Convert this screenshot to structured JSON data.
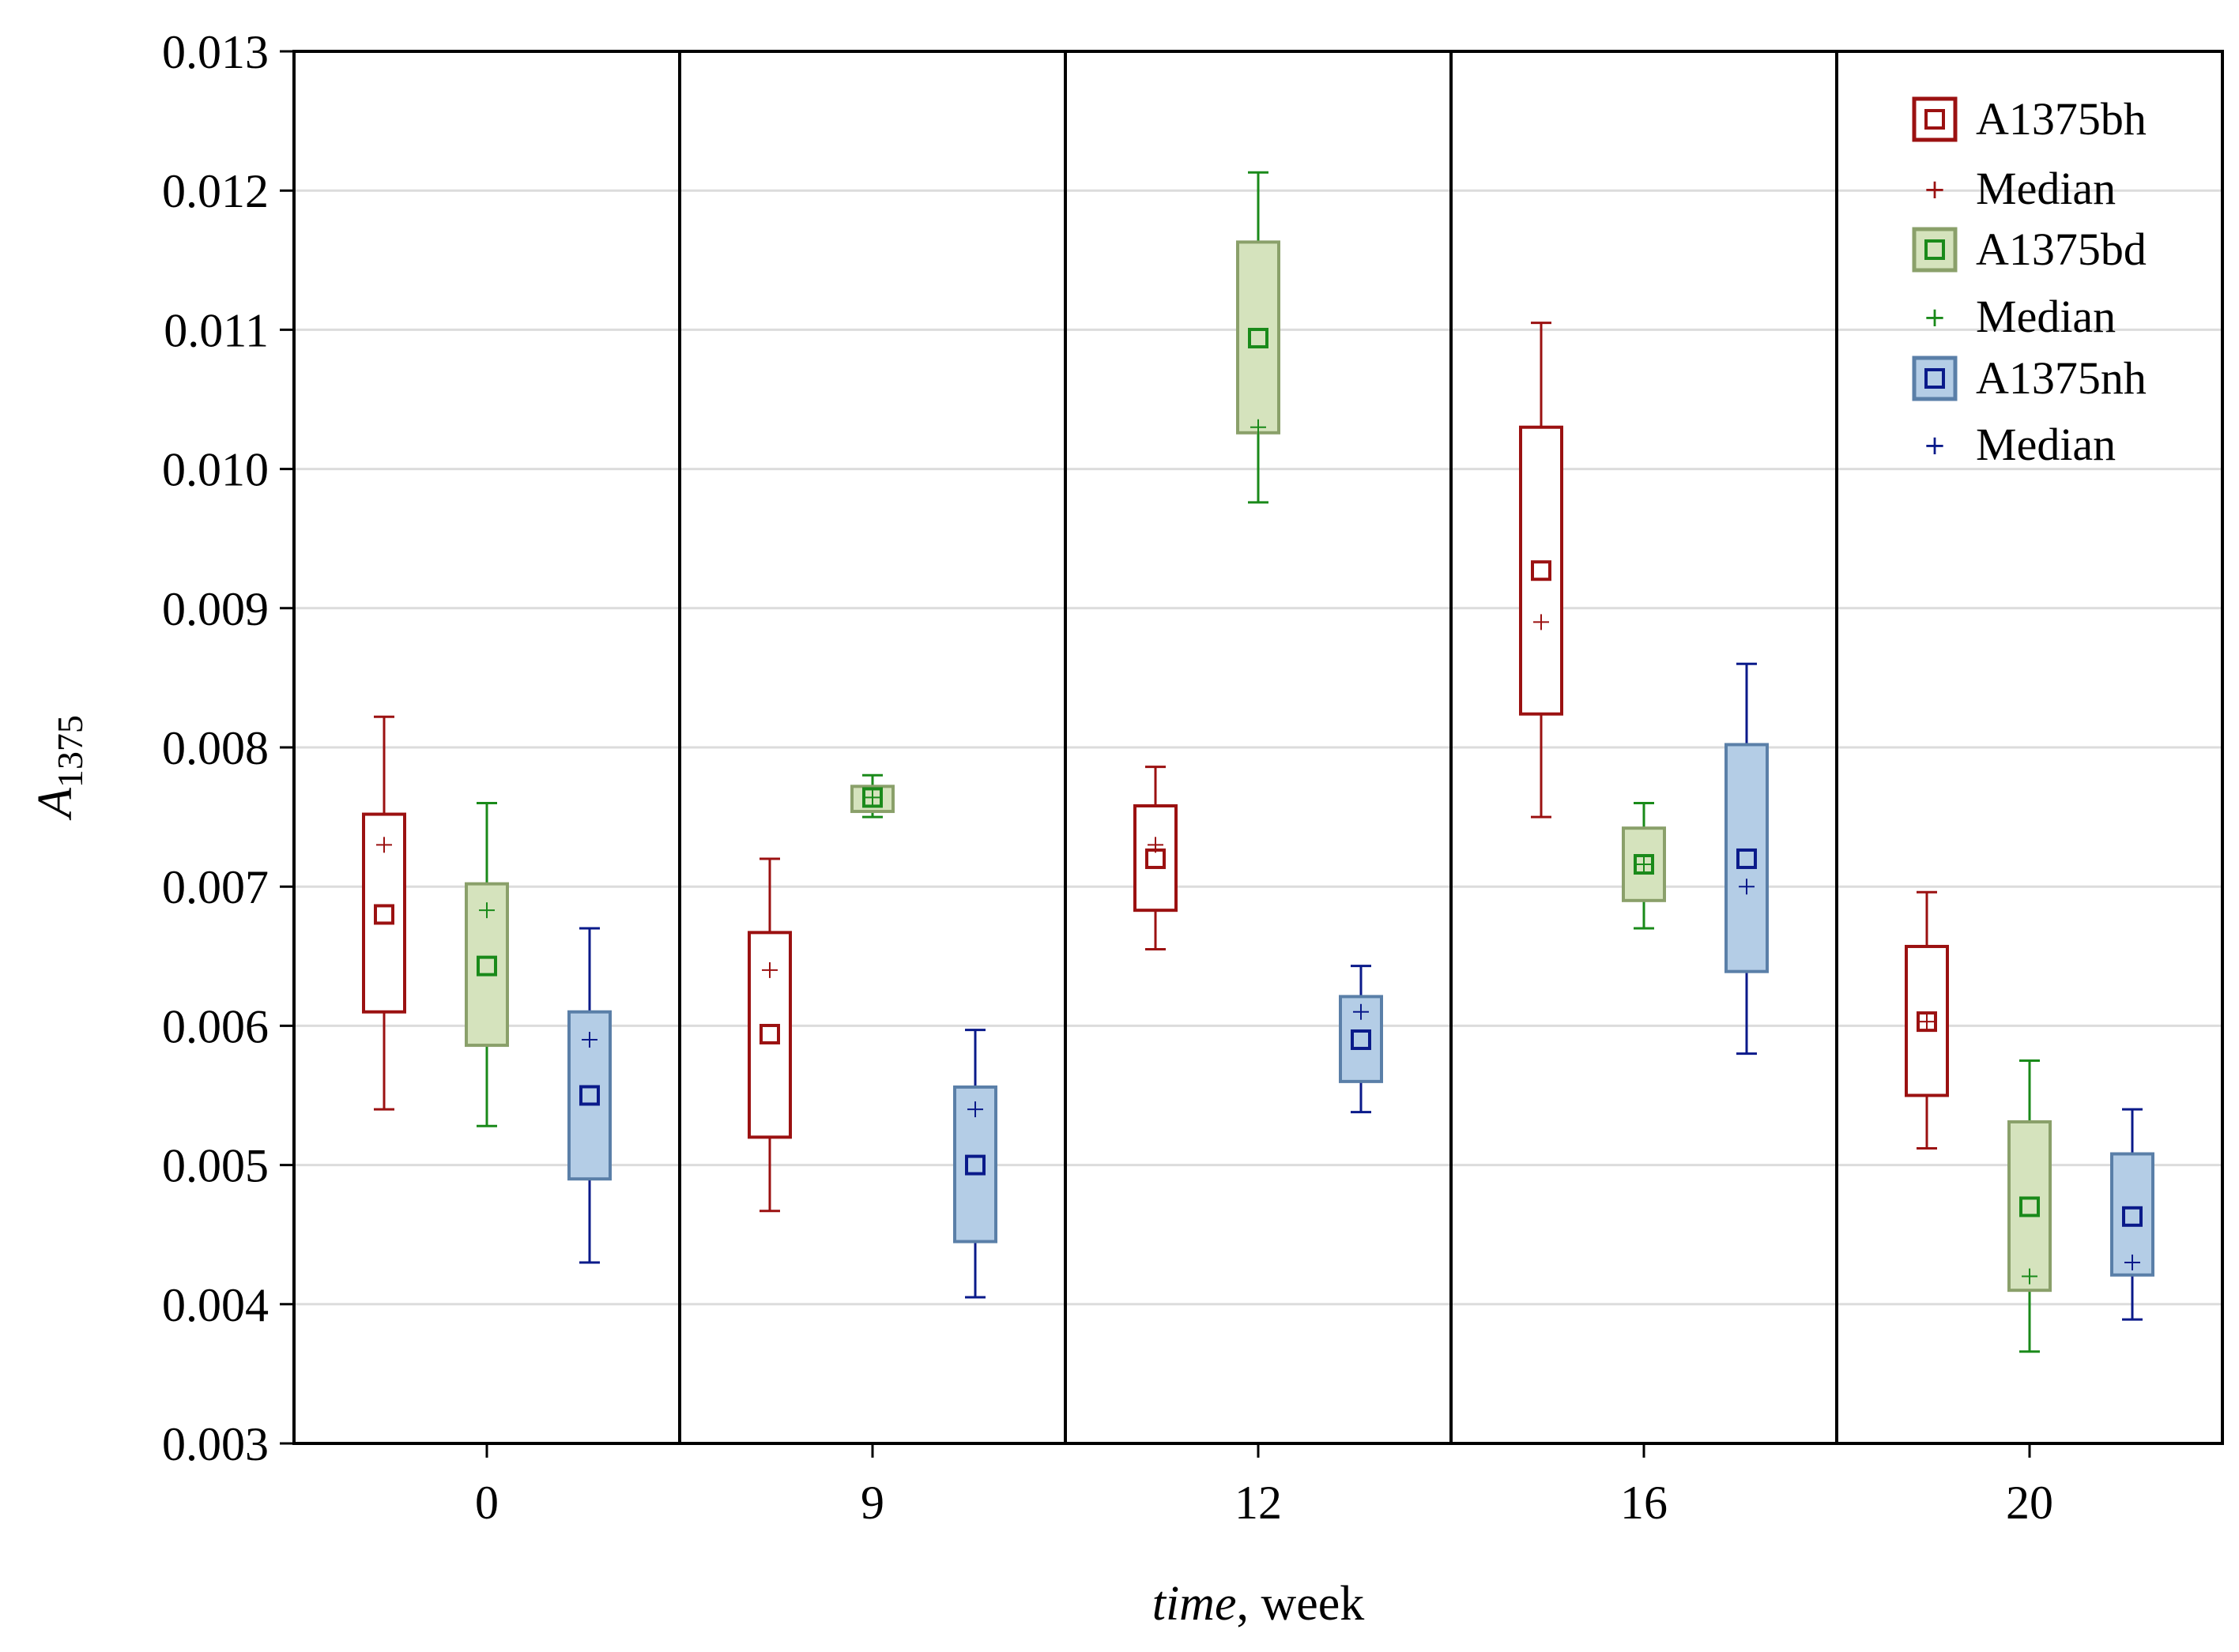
{
  "chart_data": {
    "type": "boxplot",
    "xlabel_italic": "time",
    "xlabel_rest": ", week",
    "ylabel_main": "A",
    "ylabel_sub": "1375",
    "ylim": [
      0.003,
      0.013
    ],
    "yticks": [
      "0.003",
      "0.004",
      "0.005",
      "0.006",
      "0.007",
      "0.008",
      "0.009",
      "0.010",
      "0.011",
      "0.012",
      "0.013"
    ],
    "categories": [
      "0",
      "9",
      "12",
      "16",
      "20"
    ],
    "grid": true,
    "legend_position": "top-right",
    "series": [
      {
        "name": "A1375bh",
        "median_label": "Median",
        "stroke": "#9b1111",
        "fill": "#ffffff",
        "marker": "#9b1111",
        "groups": [
          {
            "mean": 0.0068,
            "median": 0.0073,
            "q1": 0.0061,
            "q3": 0.00752,
            "min": 0.0054,
            "max": 0.00822
          },
          {
            "mean": 0.00594,
            "median": 0.0064,
            "q1": 0.0052,
            "q3": 0.00667,
            "min": 0.00467,
            "max": 0.0072
          },
          {
            "mean": 0.0072,
            "median": 0.0073,
            "q1": 0.00683,
            "q3": 0.00758,
            "min": 0.00655,
            "max": 0.00786
          },
          {
            "mean": 0.00927,
            "median": 0.0089,
            "q1": 0.00824,
            "q3": 0.0103,
            "min": 0.0075,
            "max": 0.01105
          },
          {
            "mean": 0.00603,
            "median": 0.00603,
            "q1": 0.0055,
            "q3": 0.00657,
            "min": 0.00512,
            "max": 0.00696
          }
        ]
      },
      {
        "name": "A1375bd",
        "median_label": "Median",
        "stroke": "#8aa06a",
        "fill": "#d5e3bd",
        "marker": "#1a8a1a",
        "groups": [
          {
            "mean": 0.00643,
            "median": 0.00683,
            "q1": 0.00586,
            "q3": 0.00702,
            "min": 0.00528,
            "max": 0.0076
          },
          {
            "mean": 0.00764,
            "median": 0.00764,
            "q1": 0.00754,
            "q3": 0.00772,
            "min": 0.0075,
            "max": 0.0078
          },
          {
            "mean": 0.01094,
            "median": 0.0103,
            "q1": 0.01026,
            "q3": 0.01163,
            "min": 0.00976,
            "max": 0.01213
          },
          {
            "mean": 0.00716,
            "median": 0.00716,
            "q1": 0.0069,
            "q3": 0.00742,
            "min": 0.0067,
            "max": 0.0076
          },
          {
            "mean": 0.0047,
            "median": 0.0042,
            "q1": 0.0041,
            "q3": 0.00531,
            "min": 0.00366,
            "max": 0.00575
          }
        ]
      },
      {
        "name": "A1375nh",
        "median_label": "Median",
        "stroke": "#5a7fa8",
        "fill": "#b4cde6",
        "marker": "#0a1a8a",
        "groups": [
          {
            "mean": 0.0055,
            "median": 0.0059,
            "q1": 0.0049,
            "q3": 0.0061,
            "min": 0.0043,
            "max": 0.0067
          },
          {
            "mean": 0.005,
            "median": 0.0054,
            "q1": 0.00445,
            "q3": 0.00556,
            "min": 0.00405,
            "max": 0.00597
          },
          {
            "mean": 0.0059,
            "median": 0.0061,
            "q1": 0.0056,
            "q3": 0.00621,
            "min": 0.00538,
            "max": 0.00643
          },
          {
            "mean": 0.0072,
            "median": 0.007,
            "q1": 0.00639,
            "q3": 0.00802,
            "min": 0.0058,
            "max": 0.0086
          },
          {
            "mean": 0.00463,
            "median": 0.0043,
            "q1": 0.00421,
            "q3": 0.00508,
            "min": 0.00389,
            "max": 0.0054
          }
        ]
      }
    ]
  }
}
